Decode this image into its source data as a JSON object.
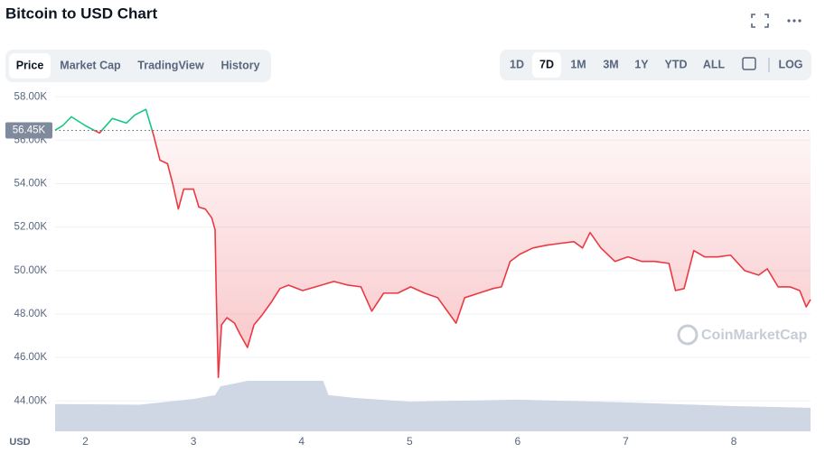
{
  "ui": {
    "title": "Bitcoin to USD Chart",
    "tabs": [
      "Price",
      "Market Cap",
      "TradingView",
      "History"
    ],
    "active_tab": 0,
    "ranges": [
      "1D",
      "7D",
      "1M",
      "3M",
      "1Y",
      "YTD",
      "ALL"
    ],
    "active_range": 1,
    "log_button": "LOG",
    "watermark": "CoinMarketCap"
  },
  "chart_data": {
    "type": "line",
    "y_axis_unit": "USD",
    "x": [
      1.72,
      1.79,
      1.87,
      2.0,
      2.13,
      2.25,
      2.38,
      2.46,
      2.56,
      2.63,
      2.69,
      2.76,
      2.81,
      2.86,
      2.91,
      3.0,
      3.05,
      3.11,
      3.17,
      3.2,
      3.21,
      3.23,
      3.26,
      3.31,
      3.38,
      3.43,
      3.5,
      3.56,
      3.63,
      3.72,
      3.8,
      3.88,
      4.01,
      4.13,
      4.3,
      4.43,
      4.55,
      4.65,
      4.76,
      4.89,
      5.01,
      5.14,
      5.26,
      5.35,
      5.43,
      5.51,
      5.64,
      5.77,
      5.85,
      5.93,
      6.02,
      6.14,
      6.27,
      6.39,
      6.52,
      6.6,
      6.67,
      6.77,
      6.9,
      7.02,
      7.15,
      7.27,
      7.4,
      7.46,
      7.54,
      7.63,
      7.73,
      7.85,
      7.97,
      8.1,
      8.23,
      8.31,
      8.41,
      8.52,
      8.61,
      8.67,
      8.71
    ],
    "series": [
      {
        "values": [
          56460,
          56670,
          57080,
          56670,
          56330,
          57000,
          56790,
          57170,
          57420,
          56250,
          55080,
          54920,
          53960,
          52830,
          53750,
          53750,
          52920,
          52830,
          52420,
          51880,
          49170,
          45080,
          47500,
          47830,
          47580,
          47080,
          46460,
          47500,
          47920,
          48540,
          49170,
          49330,
          49080,
          49250,
          49500,
          49330,
          49250,
          48130,
          48960,
          48960,
          49250,
          48960,
          48750,
          48130,
          47580,
          48750,
          48960,
          49170,
          49250,
          50420,
          50750,
          51040,
          51170,
          51250,
          51330,
          51040,
          51750,
          51040,
          50420,
          50630,
          50420,
          50420,
          50330,
          49080,
          49170,
          50920,
          50630,
          50630,
          50710,
          50000,
          49790,
          50080,
          49250,
          49250,
          49080,
          48330,
          48670
        ],
        "up_color": "#16c784",
        "down_color": "#ea3943"
      }
    ],
    "reference": {
      "value": 56450,
      "label": "56.45K"
    },
    "volume": {
      "x": [
        1.72,
        2.5,
        3.0,
        3.2,
        3.25,
        3.5,
        4.2,
        4.25,
        4.5,
        5.0,
        6.0,
        7.0,
        8.0,
        8.71
      ],
      "values": [
        8,
        7.8,
        9.5,
        10.6,
        13.2,
        14.8,
        14.8,
        10.6,
        9.8,
        8.7,
        9.3,
        8.5,
        7.4,
        6.9
      ],
      "color": "#cfd6e4",
      "axis": "y2"
    },
    "xlim": [
      1.72,
      8.71
    ],
    "xticks": [
      2,
      3,
      4,
      5,
      6,
      7,
      8
    ],
    "ylim": [
      42600,
      58300
    ],
    "yticks": [
      {
        "value": 44000,
        "label": "44.00K"
      },
      {
        "value": 46000,
        "label": "46.00K"
      },
      {
        "value": 48000,
        "label": "48.00K"
      },
      {
        "value": 50000,
        "label": "50.00K"
      },
      {
        "value": 52000,
        "label": "52.00K"
      },
      {
        "value": 54000,
        "label": "54.00K"
      },
      {
        "value": 56000,
        "label": "56.00K"
      },
      {
        "value": 58000,
        "label": "58.00K"
      }
    ],
    "y2lim": [
      0,
      100
    ],
    "grid": true
  }
}
